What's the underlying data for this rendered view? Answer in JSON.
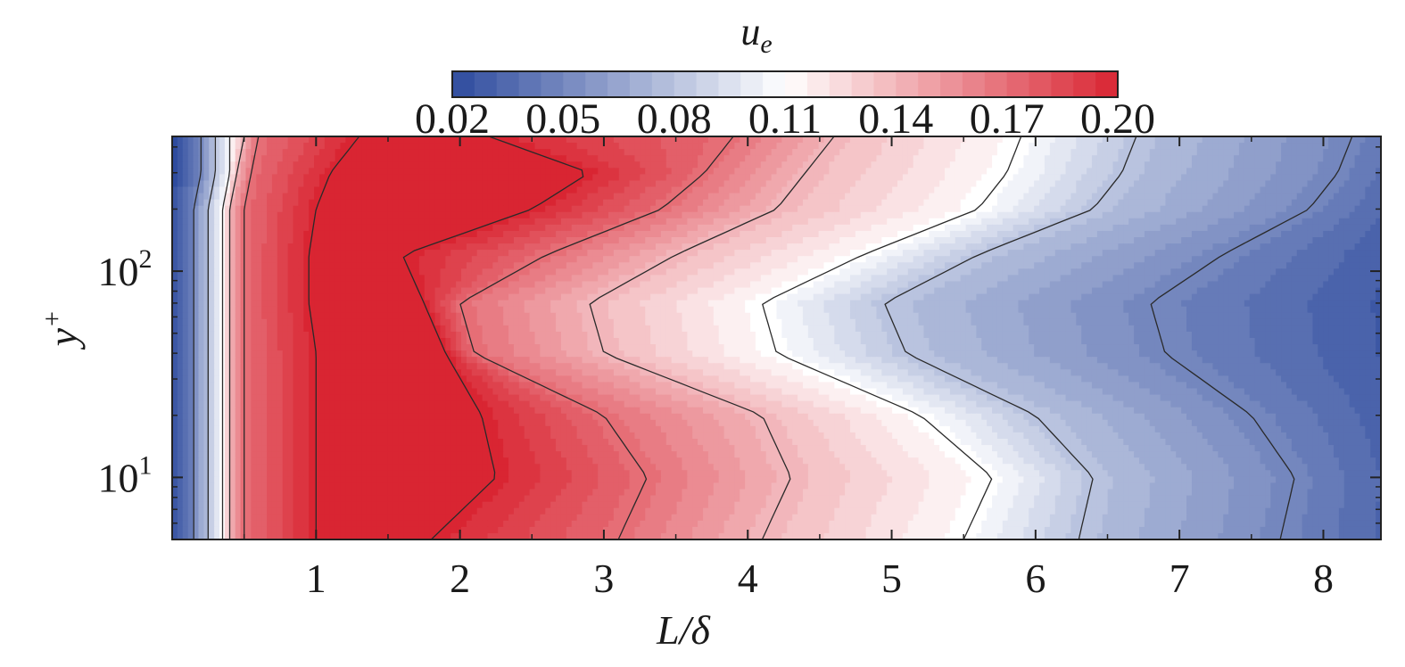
{
  "chart_data": {
    "type": "heatmap",
    "title": "",
    "colorbar": {
      "label_main": "u",
      "label_sub": "e",
      "tick_labels": [
        "0.02",
        "0.05",
        "0.08",
        "0.11",
        "0.14",
        "0.17",
        "0.20"
      ],
      "range": [
        0.02,
        0.2
      ],
      "colormap": [
        "#2e4b9e",
        "#ffffff",
        "#d92532"
      ],
      "placement": "top"
    },
    "x_axis": {
      "label": "L/δ",
      "range": [
        0,
        8.4
      ],
      "ticks": [
        {
          "value": 1,
          "label": "1"
        },
        {
          "value": 2,
          "label": "2"
        },
        {
          "value": 3,
          "label": "3"
        },
        {
          "value": 4,
          "label": "4"
        },
        {
          "value": 5,
          "label": "5"
        },
        {
          "value": 6,
          "label": "6"
        },
        {
          "value": 7,
          "label": "7"
        },
        {
          "value": 8,
          "label": "8"
        }
      ]
    },
    "y_axis": {
      "label_main": "y",
      "label_sup": "+",
      "scale": "log",
      "range": [
        5,
        450
      ],
      "ticks": [
        {
          "value": 10,
          "base": "10",
          "exp": "1"
        },
        {
          "value": 100,
          "base": "10",
          "exp": "2"
        }
      ]
    },
    "grid": false,
    "contour_levels": [
      0.05,
      0.08,
      0.11,
      0.14,
      0.17,
      0.2
    ],
    "y_samples": [
      5,
      10,
      20,
      40,
      70,
      120,
      200,
      300,
      450
    ],
    "isolines_x_at_y_samples": [
      {
        "level": 0.2,
        "side": "rising",
        "x": [
          1.0,
          1.0,
          1.0,
          1.0,
          0.95,
          0.95,
          1.0,
          1.1,
          1.3
        ]
      },
      {
        "level": 0.2,
        "side": "falling",
        "x": [
          1.8,
          2.25,
          2.15,
          1.9,
          1.75,
          1.6,
          2.5,
          2.9,
          2.2
        ]
      },
      {
        "level": 0.17,
        "side": "rising",
        "x": [
          0.5,
          0.5,
          0.5,
          0.5,
          0.5,
          0.5,
          0.5,
          0.55,
          0.6
        ]
      },
      {
        "level": 0.17,
        "side": "falling",
        "x": [
          3.1,
          3.3,
          3.0,
          2.1,
          2.0,
          2.6,
          3.4,
          3.7,
          3.9
        ]
      },
      {
        "level": 0.14,
        "side": "rising",
        "x": [
          0.4,
          0.4,
          0.4,
          0.4,
          0.4,
          0.4,
          0.4,
          0.45,
          0.5
        ]
      },
      {
        "level": 0.14,
        "side": "falling",
        "x": [
          4.1,
          4.3,
          4.1,
          3.0,
          2.9,
          3.5,
          4.2,
          4.4,
          4.6
        ]
      },
      {
        "level": 0.11,
        "side": "rising",
        "x": [
          0.35,
          0.35,
          0.35,
          0.35,
          0.35,
          0.35,
          0.35,
          0.4,
          0.4
        ]
      },
      {
        "level": 0.11,
        "side": "falling",
        "x": [
          5.5,
          5.7,
          5.2,
          4.2,
          4.1,
          4.8,
          5.6,
          5.8,
          5.9
        ]
      },
      {
        "level": 0.08,
        "side": "rising",
        "x": [
          0.25,
          0.25,
          0.25,
          0.25,
          0.25,
          0.25,
          0.25,
          0.3,
          0.3
        ]
      },
      {
        "level": 0.08,
        "side": "falling",
        "x": [
          6.3,
          6.4,
          6.0,
          5.1,
          4.95,
          5.6,
          6.4,
          6.6,
          6.7
        ]
      },
      {
        "level": 0.05,
        "side": "rising",
        "x": [
          0.15,
          0.15,
          0.15,
          0.15,
          0.15,
          0.15,
          0.15,
          0.2,
          0.2
        ]
      },
      {
        "level": 0.05,
        "side": "falling",
        "x": [
          7.7,
          7.8,
          7.5,
          6.9,
          6.8,
          7.3,
          7.9,
          8.1,
          8.2
        ]
      }
    ]
  }
}
